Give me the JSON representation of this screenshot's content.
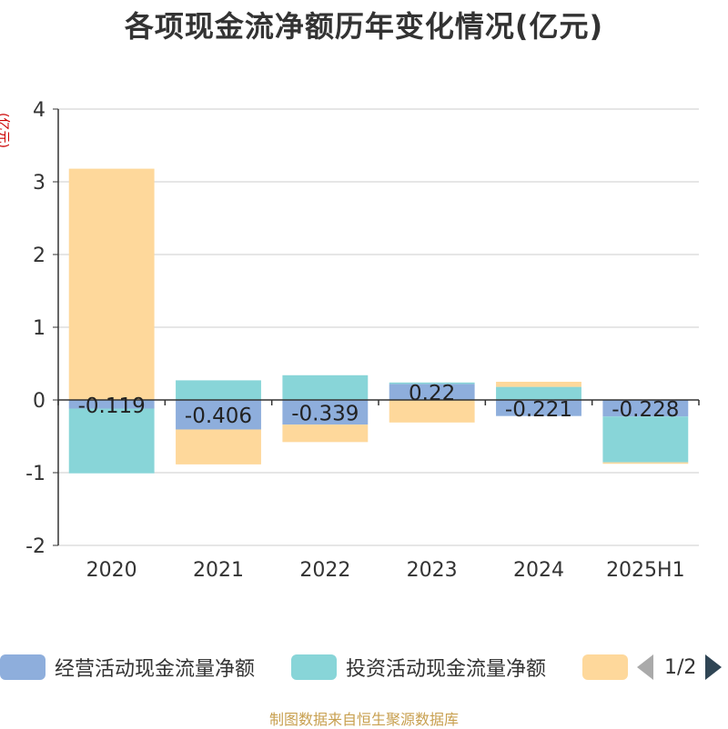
{
  "title": "各项现金流净额历年变化情况(亿元)",
  "unit_label": "(亿元)",
  "source": "制图数据来自恒生聚源数据库",
  "legend": {
    "items": [
      {
        "label": "经营活动现金流量净额",
        "color": "#8eaedc"
      },
      {
        "label": "投资活动现金流量净额",
        "color": "#88d5d8"
      },
      {
        "label": "",
        "color": "#fed89b"
      }
    ],
    "pager": "1/2"
  },
  "chart_data": {
    "type": "bar",
    "stacked": true,
    "categories": [
      "2020",
      "2021",
      "2022",
      "2023",
      "2024",
      "2025H1"
    ],
    "ylim": [
      -2,
      4
    ],
    "yticks": [
      "-2",
      "-1",
      "0",
      "1",
      "2",
      "3",
      "4"
    ],
    "grid": true,
    "series": [
      {
        "name": "经营活动现金流量净额",
        "color": "#8eaedc",
        "values": [
          -0.119,
          -0.406,
          -0.339,
          0.22,
          -0.221,
          -0.228
        ],
        "labels": [
          "-0.119",
          "-0.406",
          "-0.339",
          "0.22",
          "-0.221",
          "-0.228"
        ]
      },
      {
        "name": "投资活动现金流量净额",
        "color": "#88d5d8",
        "values": [
          -0.89,
          0.27,
          0.34,
          0.02,
          0.18,
          -0.63
        ]
      },
      {
        "name": "",
        "color": "#fed89b",
        "values": [
          3.18,
          -0.48,
          -0.24,
          -0.31,
          0.07,
          -0.02
        ]
      }
    ]
  }
}
